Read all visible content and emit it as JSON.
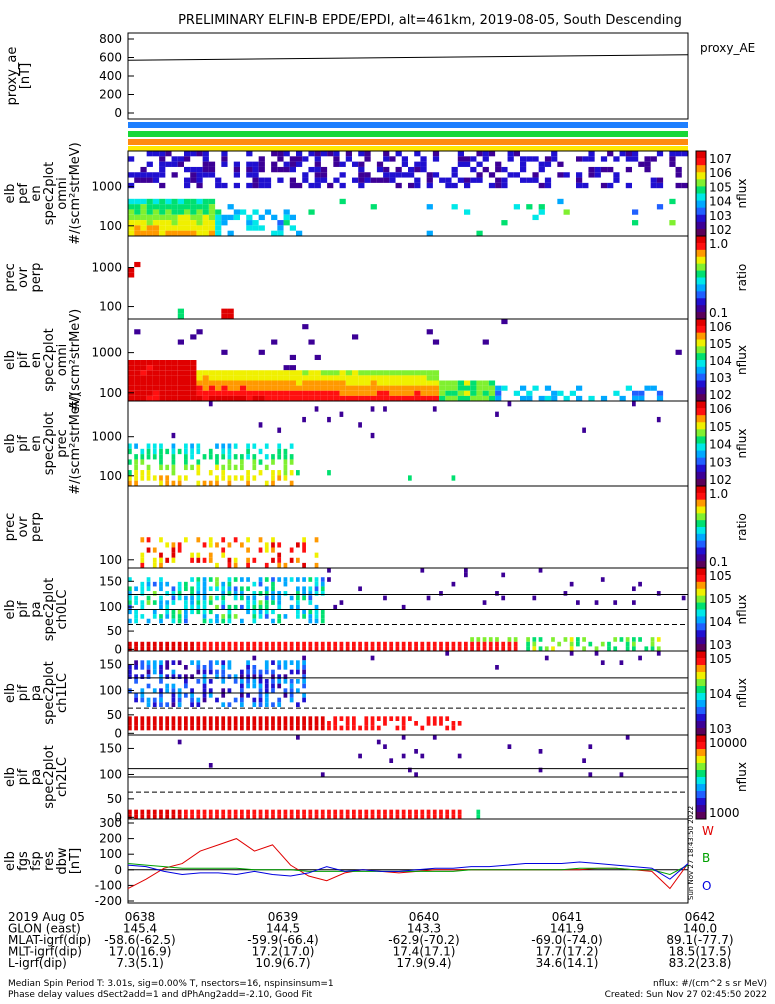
{
  "title": "PRELIMINARY ELFIN-B EPDE/EPDI, alt=461km, 2019-08-05, South Descending",
  "colors": {
    "bar_blue": "#1e7fff",
    "bar_green": "#18d838",
    "bar_orange": "#ff8a10",
    "bar_yellow": "#ffe800",
    "scale": [
      "#5a005a",
      "#3c0096",
      "#2010d0",
      "#2060ff",
      "#00a8ff",
      "#00e8e8",
      "#00e070",
      "#80f030",
      "#f0f000",
      "#ff9900",
      "#ff1010",
      "#e00000"
    ],
    "trace_w": "#e00000",
    "trace_b": "#00a000",
    "trace_o": "#0000e0"
  },
  "chart_data": [
    {
      "type": "line",
      "name": "proxy_ae",
      "ylabel": "proxy_ae [nT]",
      "yticks": [
        "800",
        "600",
        "400",
        "200",
        "0"
      ],
      "ylim": [
        0,
        800
      ],
      "x": [
        "0637:54",
        "0642:00"
      ],
      "series": [
        {
          "name": "proxy_AE",
          "values": [
            570,
            630
          ]
        }
      ]
    },
    {
      "type": "heatmap",
      "ylabel": [
        "elb",
        "pef",
        "en",
        "spec2plot",
        "omni",
        "#/(scm²strMeV)"
      ],
      "yticks": [
        "1000",
        "100"
      ],
      "colorbar_ticks": [
        "10^7",
        "10^6",
        "10^5",
        "10^4",
        "10^3",
        "10^2"
      ],
      "colorbar_label": "nflux"
    },
    {
      "type": "heatmap",
      "ylabel": [
        "prec",
        "ovr",
        "perp"
      ],
      "yticks": [
        "1000",
        "100"
      ],
      "colorbar_ticks": [
        "1.0",
        "0.1"
      ],
      "colorbar_label": "ratio"
    },
    {
      "type": "heatmap",
      "ylabel": [
        "elb",
        "pif",
        "en",
        "spec2plot",
        "omni",
        "#/(scm²strMeV)"
      ],
      "yticks": [
        "1000",
        "100"
      ],
      "colorbar_ticks": [
        "10^6",
        "10^5",
        "10^4",
        "10^3",
        "10^2"
      ],
      "colorbar_label": "nflux"
    },
    {
      "type": "heatmap",
      "ylabel": [
        "elb",
        "pif",
        "en",
        "spec2plot",
        "prec",
        "#/(scm²strMeV)"
      ],
      "yticks": [
        "1000",
        "100"
      ],
      "colorbar_ticks": [
        "10^6",
        "10^5",
        "10^4",
        "10^3",
        "10^2"
      ],
      "colorbar_label": "nflux"
    },
    {
      "type": "heatmap",
      "ylabel": [
        "prec",
        "ovr",
        "perp"
      ],
      "yticks": [
        "100"
      ],
      "colorbar_ticks": [
        "1.0",
        "0.1"
      ],
      "colorbar_label": "ratio"
    },
    {
      "type": "heatmap",
      "ylabel": [
        "elb",
        "pif",
        "pa",
        "spec2plot",
        "ch0LC"
      ],
      "yticks": [
        "150",
        "100",
        "50",
        "0"
      ],
      "colorbar_ticks": [
        "10^5",
        "10^5",
        "10^4",
        "10^3"
      ],
      "colorbar_label": "nflux"
    },
    {
      "type": "heatmap",
      "ylabel": [
        "elb",
        "pif",
        "pa",
        "spec2plot",
        "ch1LC"
      ],
      "yticks": [
        "150",
        "100",
        "50",
        "0"
      ],
      "colorbar_ticks": [
        "10^5",
        "10^4",
        "10^3"
      ],
      "colorbar_label": "nflux"
    },
    {
      "type": "heatmap",
      "ylabel": [
        "elb",
        "pif",
        "pa",
        "spec2plot",
        "ch2LC"
      ],
      "yticks": [
        "150",
        "100",
        "50",
        "0"
      ],
      "colorbar_ticks": [
        "10000",
        "1000"
      ],
      "colorbar_label": "nflux"
    },
    {
      "type": "line",
      "ylabel": [
        "elb",
        "fgs",
        "fsp",
        "res",
        "dbw",
        "[nT]"
      ],
      "yticks": [
        "300",
        "200",
        "100",
        "0",
        "-100",
        "-200"
      ],
      "ylim": [
        -200,
        300
      ],
      "series": [
        {
          "name": "W",
          "values": [
            -120,
            -60,
            10,
            40,
            120,
            160,
            200,
            120,
            160,
            30,
            -40,
            -70,
            -20,
            0,
            -10,
            -20,
            -10,
            0,
            0,
            0,
            0,
            0,
            0,
            0,
            0,
            0,
            10,
            10,
            0,
            -10,
            -120,
            40
          ]
        },
        {
          "name": "B",
          "values": [
            40,
            30,
            20,
            10,
            10,
            10,
            10,
            0,
            0,
            0,
            -10,
            -10,
            -10,
            -10,
            -10,
            -10,
            -10,
            -10,
            -10,
            0,
            0,
            0,
            0,
            0,
            0,
            10,
            10,
            10,
            0,
            0,
            -30,
            30
          ]
        },
        {
          "name": "O",
          "values": [
            30,
            20,
            -10,
            -30,
            -20,
            -20,
            -30,
            -10,
            -30,
            -40,
            -20,
            20,
            -10,
            0,
            -10,
            -10,
            0,
            10,
            10,
            20,
            20,
            30,
            40,
            40,
            40,
            50,
            40,
            30,
            20,
            10,
            -60,
            40
          ]
        }
      ]
    }
  ],
  "footer": {
    "rows": [
      [
        "2019 Aug 05",
        "0638",
        "0639",
        "0640",
        "0641",
        "0642"
      ],
      [
        "GLON (east)",
        "145.4",
        "144.5",
        "143.3",
        "141.9",
        "140.0"
      ],
      [
        "MLAT-igrf(dip)",
        "-58.6(-62.5)",
        "-59.9(-66.4)",
        "-62.9(-70.2)",
        "-69.0(-74.0)",
        "89.1(-77.7)"
      ],
      [
        "MLT-igrf(dip)",
        "17.0(16.9)",
        "17.2(17.0)",
        "17.4(17.1)",
        "17.7(17.2)",
        "18.5(17.5)"
      ],
      [
        "L-igrf(dip)",
        "7.3(5.1)",
        "10.9(6.7)",
        "17.9(9.4)",
        "34.6(14.1)",
        "83.2(23.8)"
      ]
    ],
    "note1": "Median Spin Period T: 3.01s, sig=0.00% T, nsectors=16, nspinsinsum=1",
    "note2": "Phase delay values dSect2add=1 and dPhAng2add=-2.10, Good Fit",
    "units": "nflux: #/(cm^2 s sr MeV)",
    "created": "Created: Sun Nov 27 02:45:50 2022",
    "side_stamp": "Sun Nov 27 18:43:50 2022"
  },
  "legend_labels": {
    "proxy": "proxy_AE",
    "w": "W",
    "b": "B",
    "o": "O"
  }
}
